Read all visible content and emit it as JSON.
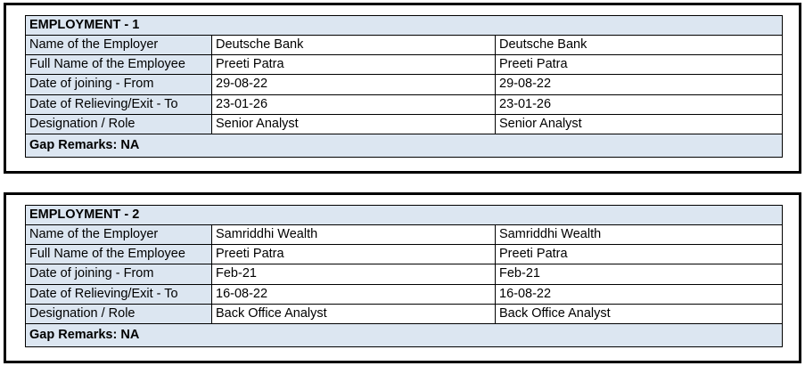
{
  "colors": {
    "shaded_cell_bg": "#dce6f1",
    "border": "#000000",
    "text": "#000000"
  },
  "tables": [
    {
      "title": "EMPLOYMENT - 1",
      "rows": [
        {
          "label": "Name of the Employer",
          "col2": "Deutsche Bank",
          "col3": "Deutsche Bank"
        },
        {
          "label": "Full Name of the Employee",
          "col2": "Preeti Patra",
          "col3": "Preeti Patra"
        },
        {
          "label": "Date of joining - From",
          "col2": "29-08-22",
          "col3": "29-08-22"
        },
        {
          "label": "Date of Relieving/Exit - To",
          "col2": "23-01-26",
          "col3": "23-01-26"
        },
        {
          "label": "Designation / Role",
          "col2": "Senior Analyst",
          "col3": "Senior Analyst"
        }
      ],
      "gap_remarks": "Gap Remarks: NA"
    },
    {
      "title": "EMPLOYMENT - 2",
      "rows": [
        {
          "label": "Name of the Employer",
          "col2": "Samriddhi Wealth",
          "col3": "Samriddhi Wealth"
        },
        {
          "label": "Full Name of the Employee",
          "col2": "Preeti Patra",
          "col3": "Preeti Patra"
        },
        {
          "label": "Date of joining - From",
          "col2": "Feb-21",
          "col3": "Feb-21"
        },
        {
          "label": "Date of Relieving/Exit - To",
          "col2": "16-08-22",
          "col3": "16-08-22"
        },
        {
          "label": "Designation / Role",
          "col2": "Back Office Analyst",
          "col3": "Back Office Analyst"
        }
      ],
      "gap_remarks": "Gap Remarks: NA"
    }
  ]
}
